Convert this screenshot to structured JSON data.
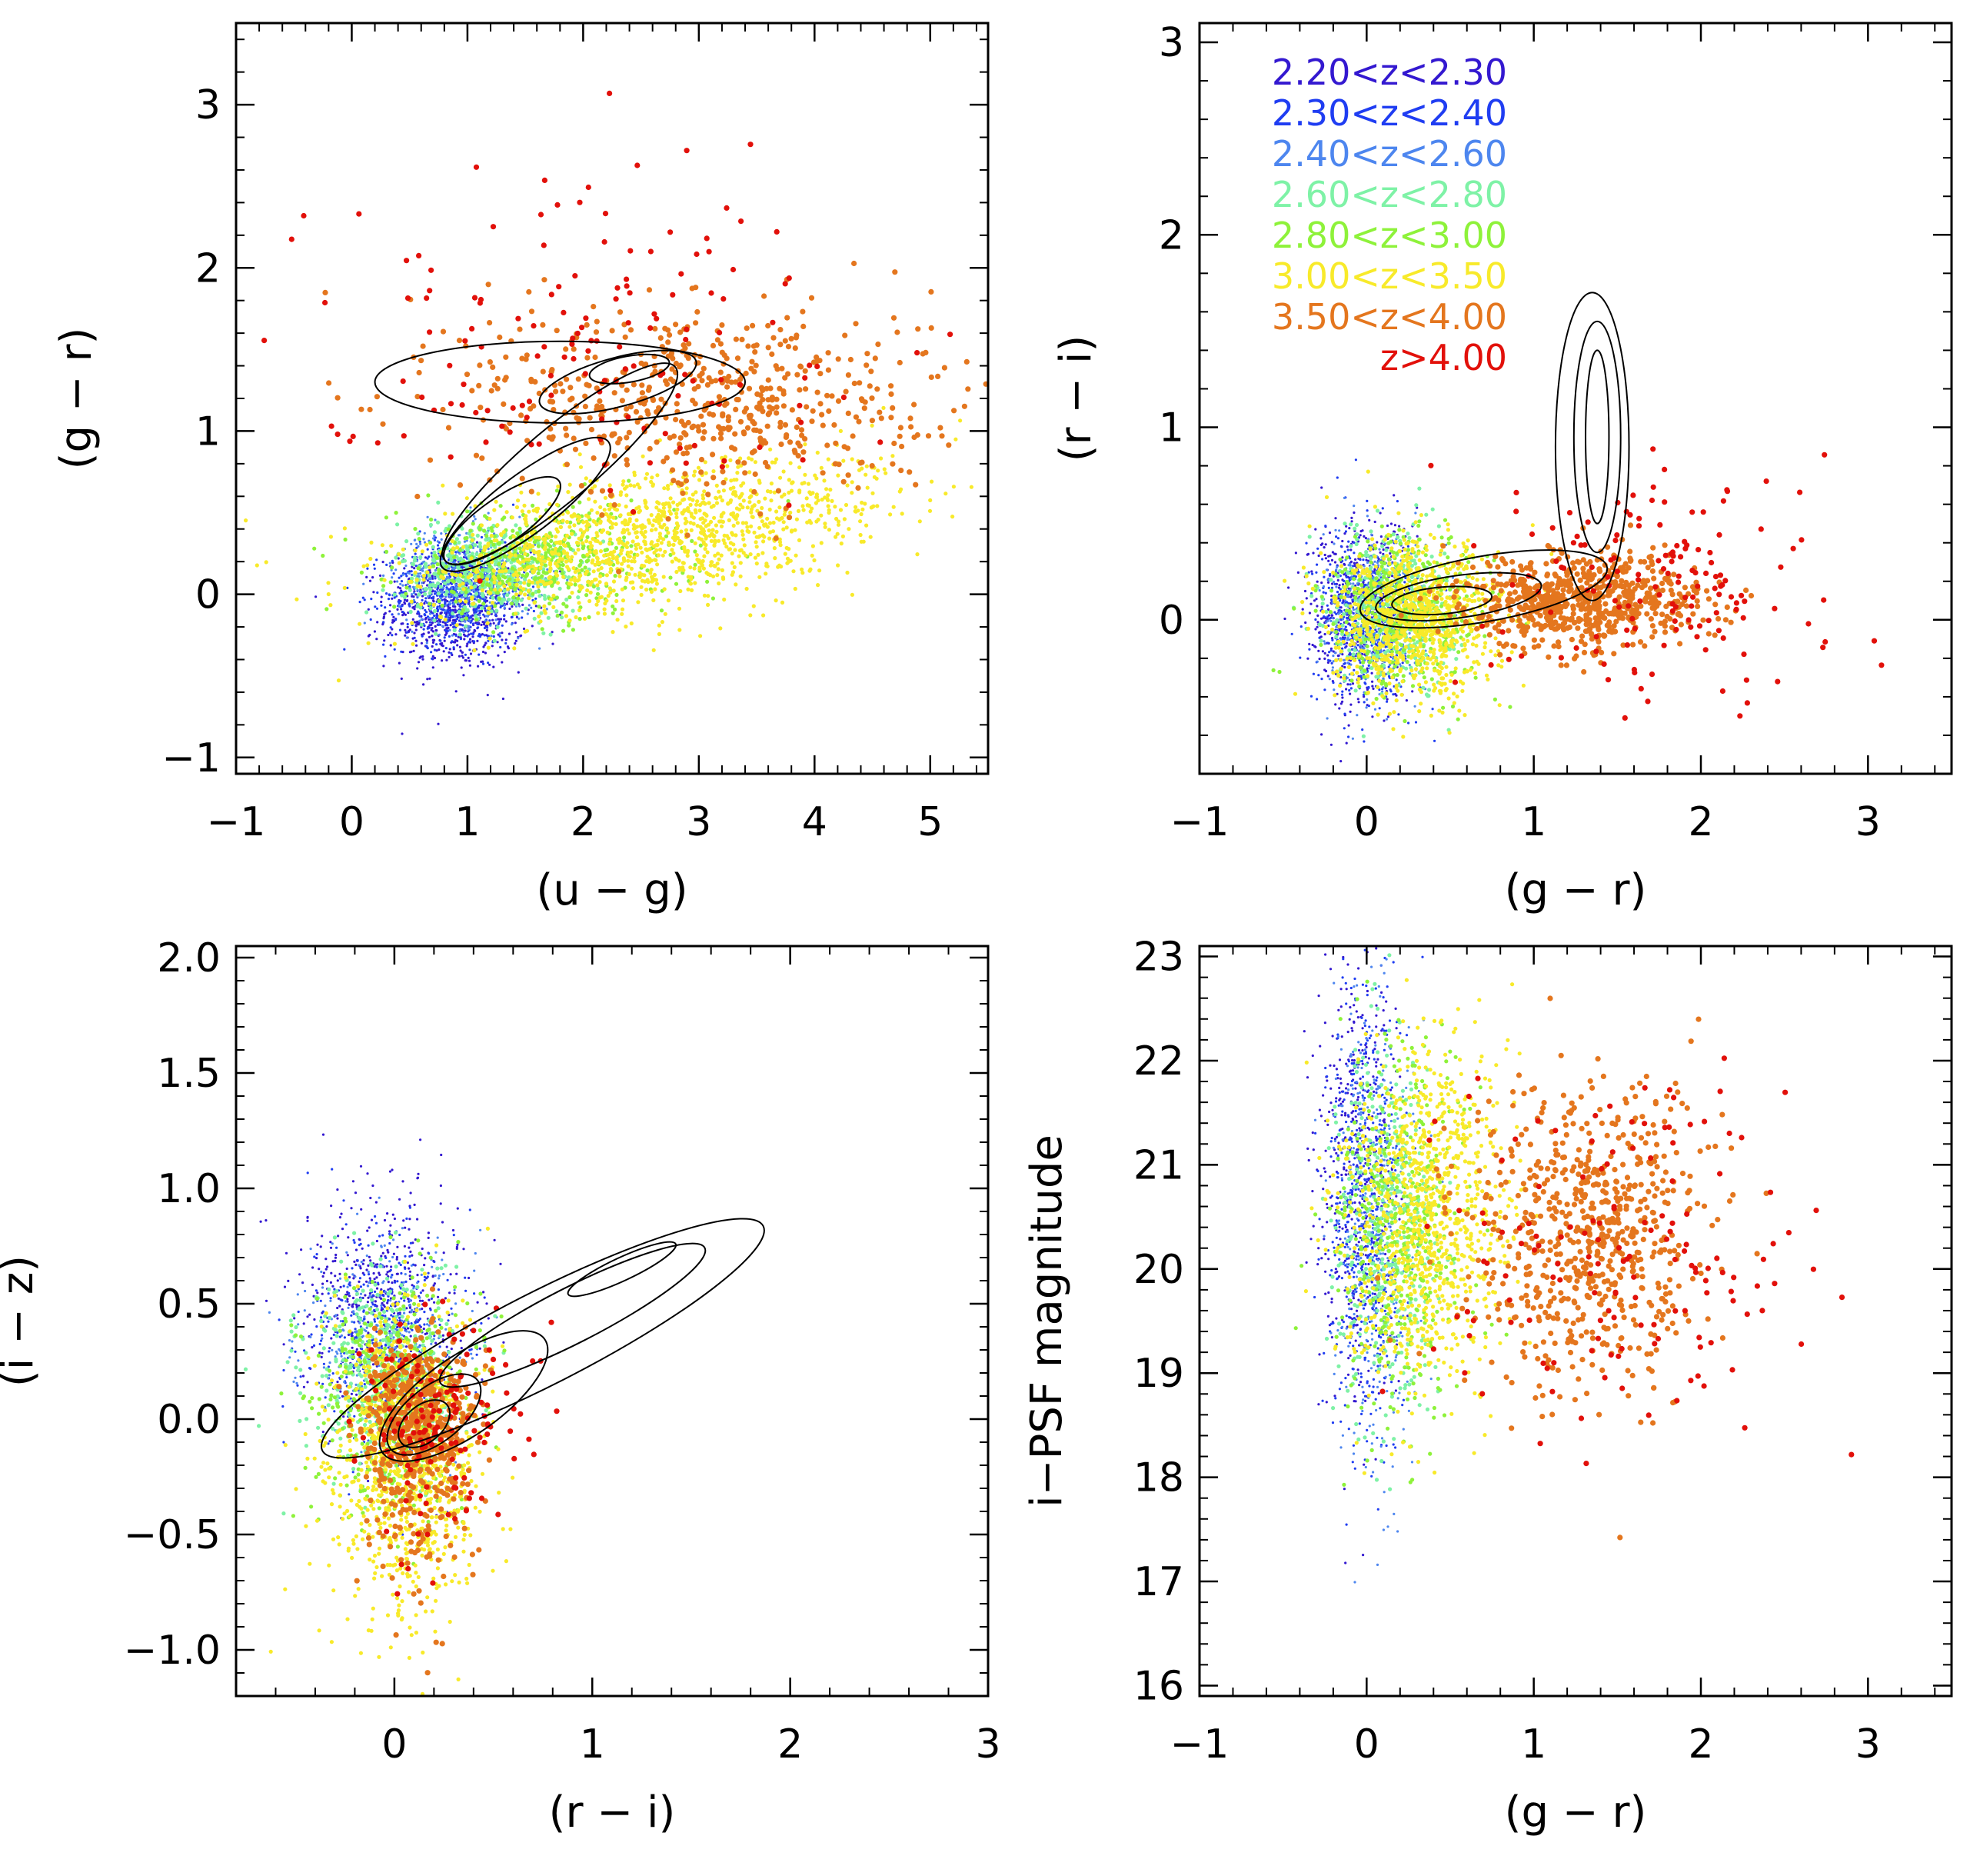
{
  "legend": [
    {
      "label": "2.20<z<2.30",
      "color": "#3318d0"
    },
    {
      "label": "2.30<z<2.40",
      "color": "#1f3df2"
    },
    {
      "label": "2.40<z<2.60",
      "color": "#4d86ef"
    },
    {
      "label": "2.60<z<2.80",
      "color": "#7ef2a6"
    },
    {
      "label": "2.80<z<3.00",
      "color": "#8ef23a"
    },
    {
      "label": "3.00<z<3.50",
      "color": "#f8ea2a"
    },
    {
      "label": "3.50<z<4.00",
      "color": "#e4761e"
    },
    {
      "label": "z>4.00",
      "color": "#e2100a"
    }
  ],
  "chart_data": [
    {
      "type": "scatter",
      "xlabel": "(u − g)",
      "ylabel": "(g − r)",
      "xlim": [
        -1,
        5.5
      ],
      "ylim": [
        -1.1,
        3.5
      ],
      "xticks": [
        "−1",
        "0",
        "1",
        "2",
        "3",
        "4",
        "5"
      ],
      "xtick_values": [
        -1,
        0,
        1,
        2,
        3,
        4,
        5
      ],
      "yticks": [
        "−1",
        "0",
        "1",
        "2",
        "3"
      ],
      "ytick_values": [
        -1,
        0,
        1,
        2,
        3
      ],
      "clusters": [
        {
          "bin": 0,
          "cx": 0.9,
          "cy": -0.1,
          "sx": 0.3,
          "sy": 0.18,
          "n": 700
        },
        {
          "bin": 1,
          "cx": 0.9,
          "cy": 0.0,
          "sx": 0.3,
          "sy": 0.16,
          "n": 600
        },
        {
          "bin": 2,
          "cx": 1.0,
          "cy": 0.1,
          "sx": 0.3,
          "sy": 0.15,
          "n": 500
        },
        {
          "bin": 3,
          "cx": 1.2,
          "cy": 0.15,
          "sx": 0.4,
          "sy": 0.15,
          "n": 450
        },
        {
          "bin": 4,
          "cx": 1.6,
          "cy": 0.2,
          "sx": 0.6,
          "sy": 0.17,
          "n": 450
        },
        {
          "bin": 5,
          "cx": 2.6,
          "cy": 0.35,
          "sx": 1.0,
          "sy": 0.2,
          "n": 1300
        },
        {
          "bin": 6,
          "cx": 3.0,
          "cy": 1.2,
          "sx": 1.0,
          "sy": 0.3,
          "n": 600
        },
        {
          "bin": 7,
          "cx": 2.0,
          "cy": 1.6,
          "sx": 1.2,
          "sy": 0.5,
          "n": 150
        }
      ],
      "contours": [
        {
          "cx": 1.3,
          "cy": 0.45,
          "rx": 0.6,
          "ry": 0.14,
          "angle": 35
        },
        {
          "cx": 1.5,
          "cy": 0.55,
          "rx": 0.9,
          "ry": 0.18,
          "angle": 37
        },
        {
          "cx": 1.8,
          "cy": 0.8,
          "rx": 1.3,
          "ry": 0.22,
          "angle": 40
        },
        {
          "cx": 2.4,
          "cy": 1.38,
          "rx": 0.35,
          "ry": 0.08,
          "angle": 10
        },
        {
          "cx": 2.3,
          "cy": 1.3,
          "rx": 0.7,
          "ry": 0.15,
          "angle": 15
        },
        {
          "cx": 1.8,
          "cy": 1.3,
          "rx": 1.6,
          "ry": 0.25,
          "angle": 0
        }
      ]
    },
    {
      "type": "scatter",
      "xlabel": "(g − r)",
      "ylabel": "(r − i)",
      "xlim": [
        -1,
        3.5
      ],
      "ylim": [
        -0.8,
        3.1
      ],
      "xticks": [
        "−1",
        "0",
        "1",
        "2",
        "3"
      ],
      "xtick_values": [
        -1,
        0,
        1,
        2,
        3
      ],
      "yticks": [
        "0",
        "1",
        "2",
        "3"
      ],
      "ytick_values": [
        0,
        1,
        2,
        3
      ],
      "clusters": [
        {
          "bin": 0,
          "cx": -0.05,
          "cy": 0.05,
          "sx": 0.15,
          "sy": 0.25,
          "n": 600
        },
        {
          "bin": 1,
          "cx": 0.0,
          "cy": 0.0,
          "sx": 0.15,
          "sy": 0.22,
          "n": 500
        },
        {
          "bin": 2,
          "cx": 0.05,
          "cy": 0.0,
          "sx": 0.15,
          "sy": 0.2,
          "n": 400
        },
        {
          "bin": 3,
          "cx": 0.15,
          "cy": 0.05,
          "sx": 0.18,
          "sy": 0.2,
          "n": 400
        },
        {
          "bin": 4,
          "cx": 0.25,
          "cy": 0.05,
          "sx": 0.25,
          "sy": 0.2,
          "n": 450
        },
        {
          "bin": 5,
          "cx": 0.3,
          "cy": 0.0,
          "sx": 0.25,
          "sy": 0.2,
          "n": 900
        },
        {
          "bin": 6,
          "cx": 1.3,
          "cy": 0.1,
          "sx": 0.35,
          "sy": 0.12,
          "n": 700
        },
        {
          "bin": 7,
          "cx": 1.8,
          "cy": 0.2,
          "sx": 0.5,
          "sy": 0.3,
          "n": 150
        }
      ],
      "contours": [
        {
          "cx": 0.45,
          "cy": 0.1,
          "rx": 0.3,
          "ry": 0.07,
          "angle": 5
        },
        {
          "cx": 0.55,
          "cy": 0.12,
          "rx": 0.5,
          "ry": 0.11,
          "angle": 8
        },
        {
          "cx": 0.7,
          "cy": 0.16,
          "rx": 0.75,
          "ry": 0.17,
          "angle": 10
        },
        {
          "cx": 1.38,
          "cy": 0.95,
          "rx": 0.07,
          "ry": 0.45,
          "angle": 0
        },
        {
          "cx": 1.38,
          "cy": 0.95,
          "rx": 0.14,
          "ry": 0.6,
          "angle": 0
        },
        {
          "cx": 1.35,
          "cy": 0.9,
          "rx": 0.22,
          "ry": 0.8,
          "angle": 0
        }
      ]
    },
    {
      "type": "scatter",
      "xlabel": "(r − i)",
      "ylabel": "(i − z)",
      "xlim": [
        -0.8,
        3.0
      ],
      "ylim": [
        -1.2,
        2.05
      ],
      "xticks": [
        "0",
        "1",
        "2",
        "3"
      ],
      "xtick_values": [
        0,
        1,
        2,
        3
      ],
      "yticks": [
        "−1.0",
        "−0.5",
        "0.0",
        "0.5",
        "1.0",
        "1.5",
        "2.0"
      ],
      "ytick_values": [
        -1.0,
        -0.5,
        0.0,
        0.5,
        1.0,
        1.5,
        2.0
      ],
      "clusters": [
        {
          "bin": 0,
          "cx": -0.05,
          "cy": 0.5,
          "sx": 0.2,
          "sy": 0.25,
          "n": 500
        },
        {
          "bin": 1,
          "cx": -0.05,
          "cy": 0.35,
          "sx": 0.2,
          "sy": 0.25,
          "n": 400
        },
        {
          "bin": 2,
          "cx": -0.05,
          "cy": 0.3,
          "sx": 0.2,
          "sy": 0.22,
          "n": 350
        },
        {
          "bin": 3,
          "cx": -0.05,
          "cy": 0.2,
          "sx": 0.2,
          "sy": 0.22,
          "n": 400
        },
        {
          "bin": 4,
          "cx": 0.0,
          "cy": 0.1,
          "sx": 0.2,
          "sy": 0.25,
          "n": 450
        },
        {
          "bin": 5,
          "cx": 0.05,
          "cy": -0.1,
          "sx": 0.2,
          "sy": 0.3,
          "n": 900
        },
        {
          "bin": 6,
          "cx": 0.12,
          "cy": 0.0,
          "sx": 0.15,
          "sy": 0.18,
          "n": 600
        },
        {
          "bin": 7,
          "cx": 0.25,
          "cy": 0.05,
          "sx": 0.2,
          "sy": 0.2,
          "n": 150
        }
      ],
      "contours": [
        {
          "cx": 0.15,
          "cy": -0.02,
          "rx": 0.15,
          "ry": 0.08,
          "angle": 40
        },
        {
          "cx": 0.2,
          "cy": 0.02,
          "rx": 0.28,
          "ry": 0.12,
          "angle": 38
        },
        {
          "cx": 0.35,
          "cy": 0.1,
          "rx": 0.5,
          "ry": 0.17,
          "angle": 35
        },
        {
          "cx": 1.15,
          "cy": 0.65,
          "rx": 0.3,
          "ry": 0.05,
          "angle": 25
        },
        {
          "cx": 0.9,
          "cy": 0.45,
          "rx": 0.75,
          "ry": 0.12,
          "angle": 27
        },
        {
          "cx": 0.75,
          "cy": 0.35,
          "rx": 1.25,
          "ry": 0.2,
          "angle": 27
        }
      ]
    },
    {
      "type": "scatter",
      "xlabel": "(g − r)",
      "ylabel": "i−PSF magnitude",
      "xlim": [
        -1,
        3.5
      ],
      "ylim": [
        15.9,
        23.1
      ],
      "xticks": [
        "−1",
        "0",
        "1",
        "2",
        "3"
      ],
      "xtick_values": [
        -1,
        0,
        1,
        2,
        3
      ],
      "yticks": [
        "16",
        "17",
        "18",
        "19",
        "20",
        "21",
        "22",
        "23"
      ],
      "ytick_values": [
        16,
        17,
        18,
        19,
        20,
        21,
        22,
        23
      ],
      "clusters": [
        {
          "bin": 0,
          "cx": -0.05,
          "cy": 20.8,
          "sx": 0.12,
          "sy": 0.8,
          "n": 500
        },
        {
          "bin": 1,
          "cx": 0.0,
          "cy": 20.5,
          "sx": 0.12,
          "sy": 0.9,
          "n": 500
        },
        {
          "bin": 2,
          "cx": 0.05,
          "cy": 20.4,
          "sx": 0.12,
          "sy": 0.9,
          "n": 400
        },
        {
          "bin": 3,
          "cx": 0.12,
          "cy": 20.4,
          "sx": 0.15,
          "sy": 0.9,
          "n": 400
        },
        {
          "bin": 4,
          "cx": 0.2,
          "cy": 20.3,
          "sx": 0.2,
          "sy": 0.9,
          "n": 450
        },
        {
          "bin": 5,
          "cx": 0.35,
          "cy": 20.5,
          "sx": 0.25,
          "sy": 0.8,
          "n": 1000
        },
        {
          "bin": 6,
          "cx": 1.3,
          "cy": 20.3,
          "sx": 0.35,
          "sy": 0.7,
          "n": 700
        },
        {
          "bin": 7,
          "cx": 1.5,
          "cy": 20.0,
          "sx": 0.6,
          "sy": 0.8,
          "n": 150
        }
      ],
      "contours": []
    }
  ]
}
